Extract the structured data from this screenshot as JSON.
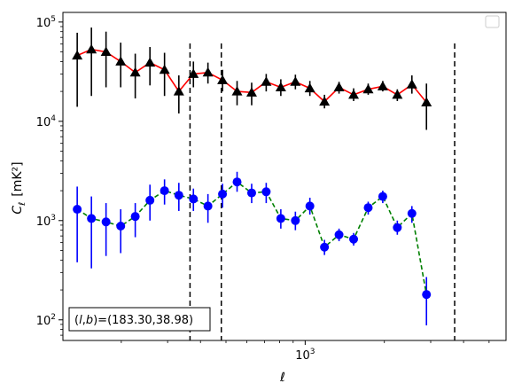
{
  "chart_data": {
    "type": "line",
    "xscale": "log",
    "yscale": "log",
    "xlim": [
      120,
      5800
    ],
    "ylim": [
      62,
      125000
    ],
    "xlabel": "ℓ",
    "ylabel_main": "C",
    "ylabel_sub": "ℓ",
    "ylabel_unit": "[mK²]",
    "x_ticks": [
      {
        "value": 1000,
        "base": "10",
        "exp": "3"
      }
    ],
    "y_ticks": [
      {
        "value": 100,
        "base": "10",
        "exp": "2"
      },
      {
        "value": 1000,
        "base": "10",
        "exp": "3"
      },
      {
        "value": 10000,
        "base": "10",
        "exp": "4"
      },
      {
        "value": 100000,
        "base": "10",
        "exp": "5"
      }
    ],
    "vlines": [
      365,
      480,
      3700
    ],
    "annotation": "(l, b)=(183.30,38.98)",
    "legend": "upper right (empty)",
    "series": [
      {
        "marker": "triangle",
        "marker_color": "#000000",
        "line_color": "#ff0000",
        "line_style": "solid",
        "points": [
          {
            "x": 136,
            "y": 46000,
            "lo": 14000,
            "hi": 78000
          },
          {
            "x": 154,
            "y": 53000,
            "lo": 18000,
            "hi": 88000
          },
          {
            "x": 175,
            "y": 50000,
            "lo": 22000,
            "hi": 80000
          },
          {
            "x": 199,
            "y": 40000,
            "lo": 22000,
            "hi": 62000
          },
          {
            "x": 226,
            "y": 31000,
            "lo": 17000,
            "hi": 48000
          },
          {
            "x": 257,
            "y": 39000,
            "lo": 23000,
            "hi": 56000
          },
          {
            "x": 292,
            "y": 33000,
            "lo": 18000,
            "hi": 49000
          },
          {
            "x": 331,
            "y": 20000,
            "lo": 12000,
            "hi": 29000
          },
          {
            "x": 376,
            "y": 30000,
            "lo": 22000,
            "hi": 40000
          },
          {
            "x": 427,
            "y": 31000,
            "lo": 24000,
            "hi": 39000
          },
          {
            "x": 485,
            "y": 26000,
            "lo": 20000,
            "hi": 33000
          },
          {
            "x": 551,
            "y": 20000,
            "lo": 14500,
            "hi": 25500
          },
          {
            "x": 626,
            "y": 19500,
            "lo": 14500,
            "hi": 24500
          },
          {
            "x": 711,
            "y": 25000,
            "lo": 20000,
            "hi": 30000
          },
          {
            "x": 808,
            "y": 22000,
            "lo": 18000,
            "hi": 26500
          },
          {
            "x": 918,
            "y": 25000,
            "lo": 21000,
            "hi": 29500
          },
          {
            "x": 1042,
            "y": 21500,
            "lo": 18000,
            "hi": 25500
          },
          {
            "x": 1184,
            "y": 15800,
            "lo": 13500,
            "hi": 18500
          },
          {
            "x": 1345,
            "y": 22000,
            "lo": 19000,
            "hi": 25000
          },
          {
            "x": 1528,
            "y": 18500,
            "lo": 16000,
            "hi": 21500
          },
          {
            "x": 1736,
            "y": 21000,
            "lo": 18500,
            "hi": 24000
          },
          {
            "x": 1972,
            "y": 22500,
            "lo": 20000,
            "hi": 25500
          },
          {
            "x": 2240,
            "y": 18500,
            "lo": 16000,
            "hi": 21000
          },
          {
            "x": 2545,
            "y": 23500,
            "lo": 19000,
            "hi": 29000
          },
          {
            "x": 2891,
            "y": 15500,
            "lo": 8200,
            "hi": 24000
          }
        ]
      },
      {
        "marker": "circle",
        "marker_color": "#0000ff",
        "line_color": "#008000",
        "line_style": "dashed",
        "points": [
          {
            "x": 136,
            "y": 1300,
            "lo": 380,
            "hi": 2200
          },
          {
            "x": 154,
            "y": 1050,
            "lo": 330,
            "hi": 1750
          },
          {
            "x": 175,
            "y": 970,
            "lo": 440,
            "hi": 1500
          },
          {
            "x": 199,
            "y": 880,
            "lo": 470,
            "hi": 1300
          },
          {
            "x": 226,
            "y": 1100,
            "lo": 680,
            "hi": 1500
          },
          {
            "x": 257,
            "y": 1600,
            "lo": 1000,
            "hi": 2300
          },
          {
            "x": 292,
            "y": 2000,
            "lo": 1450,
            "hi": 2600
          },
          {
            "x": 331,
            "y": 1800,
            "lo": 1250,
            "hi": 2400
          },
          {
            "x": 376,
            "y": 1650,
            "lo": 1250,
            "hi": 2100
          },
          {
            "x": 427,
            "y": 1400,
            "lo": 950,
            "hi": 1850
          },
          {
            "x": 485,
            "y": 1850,
            "lo": 1350,
            "hi": 2350
          },
          {
            "x": 551,
            "y": 2450,
            "lo": 1950,
            "hi": 3100
          },
          {
            "x": 626,
            "y": 1900,
            "lo": 1500,
            "hi": 2350
          },
          {
            "x": 711,
            "y": 1950,
            "lo": 1500,
            "hi": 2400
          },
          {
            "x": 808,
            "y": 1050,
            "lo": 830,
            "hi": 1300
          },
          {
            "x": 918,
            "y": 1000,
            "lo": 800,
            "hi": 1230
          },
          {
            "x": 1042,
            "y": 1400,
            "lo": 1150,
            "hi": 1700
          },
          {
            "x": 1184,
            "y": 540,
            "lo": 450,
            "hi": 640
          },
          {
            "x": 1345,
            "y": 720,
            "lo": 620,
            "hi": 830
          },
          {
            "x": 1528,
            "y": 650,
            "lo": 560,
            "hi": 750
          },
          {
            "x": 1736,
            "y": 1350,
            "lo": 1150,
            "hi": 1550
          },
          {
            "x": 1972,
            "y": 1750,
            "lo": 1500,
            "hi": 2000
          },
          {
            "x": 2240,
            "y": 850,
            "lo": 720,
            "hi": 1000
          },
          {
            "x": 2545,
            "y": 1180,
            "lo": 950,
            "hi": 1400
          },
          {
            "x": 2891,
            "y": 180,
            "lo": 88,
            "hi": 270
          }
        ]
      }
    ]
  }
}
